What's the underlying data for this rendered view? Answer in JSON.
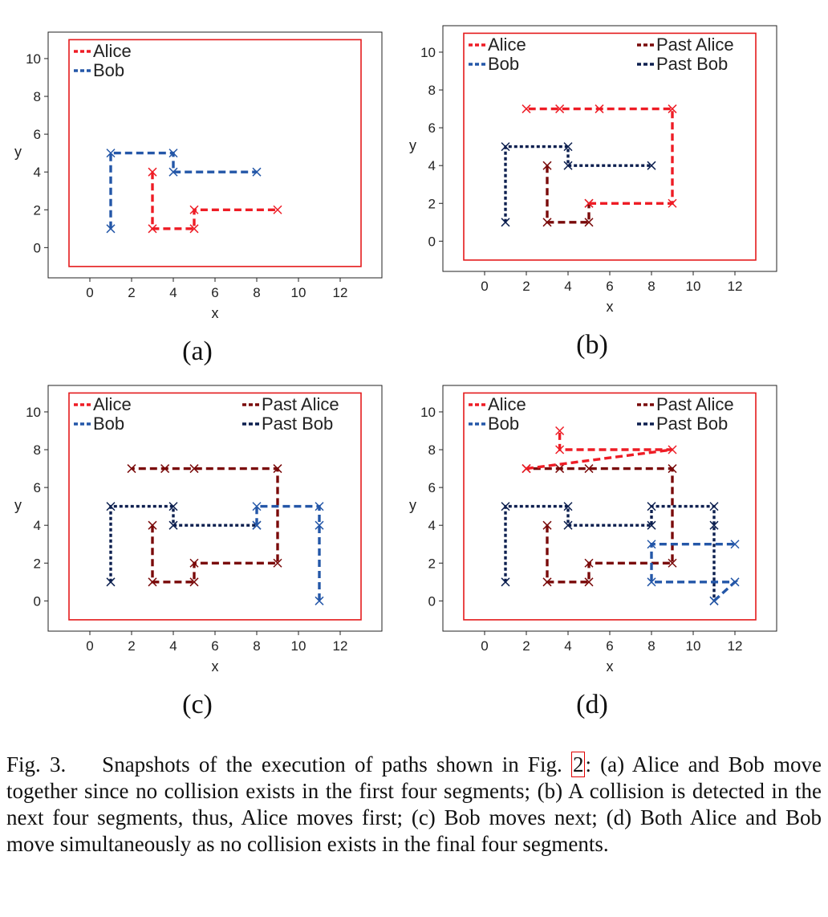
{
  "chart_data": [
    {
      "type": "line",
      "panel_label": "(a)",
      "xlabel": "x",
      "ylabel": "y",
      "xticks": [
        0,
        2,
        4,
        6,
        8,
        10,
        12
      ],
      "yticks": [
        0,
        2,
        4,
        6,
        8,
        10
      ],
      "xlim": [
        -2,
        14
      ],
      "ylim": [
        -1.6,
        11.4
      ],
      "boundary": {
        "x": [
          -1,
          13
        ],
        "y": [
          -1,
          11
        ],
        "color": "#e41a1c"
      },
      "legend": {
        "left": [
          {
            "label": "Alice",
            "color": "#ee1c25"
          },
          {
            "label": "Bob",
            "color": "#2457a8"
          }
        ],
        "right": []
      },
      "series": [
        {
          "name": "Alice",
          "color": "#ee1c25",
          "style": "dashed",
          "x": [
            3,
            3,
            5,
            5,
            9
          ],
          "y": [
            4,
            1,
            1,
            2,
            2
          ]
        },
        {
          "name": "Bob",
          "color": "#2457a8",
          "style": "dashed",
          "x": [
            1,
            1,
            4,
            4,
            8
          ],
          "y": [
            1,
            5,
            5,
            4,
            4
          ]
        }
      ]
    },
    {
      "type": "line",
      "panel_label": "(b)",
      "xlabel": "x",
      "ylabel": "y",
      "xticks": [
        0,
        2,
        4,
        6,
        8,
        10,
        12
      ],
      "yticks": [
        0,
        2,
        4,
        6,
        8,
        10
      ],
      "xlim": [
        -2,
        14
      ],
      "ylim": [
        -1.6,
        11.4
      ],
      "boundary": {
        "x": [
          -1,
          13
        ],
        "y": [
          -1,
          11
        ],
        "color": "#e41a1c"
      },
      "legend": {
        "left": [
          {
            "label": "Alice",
            "color": "#ee1c25"
          },
          {
            "label": "Bob",
            "color": "#2457a8"
          }
        ],
        "right": [
          {
            "label": "Past Alice",
            "color": "#7a0a0a"
          },
          {
            "label": "Past Bob",
            "color": "#0c1f4f"
          }
        ]
      },
      "series": [
        {
          "name": "Past Alice",
          "color": "#7a0a0a",
          "style": "dashed",
          "x": [
            3,
            3,
            5,
            5
          ],
          "y": [
            4,
            1,
            1,
            2
          ]
        },
        {
          "name": "Alice",
          "color": "#ee1c25",
          "style": "dashed",
          "x": [
            5,
            9,
            9,
            5.5,
            3.6,
            2
          ],
          "y": [
            2,
            2,
            7,
            7,
            7,
            7
          ]
        },
        {
          "name": "Past Bob",
          "color": "#0c1f4f",
          "style": "dotted",
          "x": [
            1,
            1,
            4,
            4,
            8
          ],
          "y": [
            1,
            5,
            5,
            4,
            4
          ]
        }
      ]
    },
    {
      "type": "line",
      "panel_label": "(c)",
      "xlabel": "x",
      "ylabel": "y",
      "xticks": [
        0,
        2,
        4,
        6,
        8,
        10,
        12
      ],
      "yticks": [
        0,
        2,
        4,
        6,
        8,
        10
      ],
      "xlim": [
        -2,
        14
      ],
      "ylim": [
        -1.6,
        11.4
      ],
      "boundary": {
        "x": [
          -1,
          13
        ],
        "y": [
          -1,
          11
        ],
        "color": "#e41a1c"
      },
      "legend": {
        "left": [
          {
            "label": "Alice",
            "color": "#ee1c25"
          },
          {
            "label": "Bob",
            "color": "#2457a8"
          }
        ],
        "right": [
          {
            "label": "Past Alice",
            "color": "#7a0a0a"
          },
          {
            "label": "Past Bob",
            "color": "#0c1f4f"
          }
        ]
      },
      "series": [
        {
          "name": "Past Alice",
          "color": "#7a0a0a",
          "style": "dashed",
          "x": [
            3,
            3,
            5,
            5,
            9,
            9,
            5,
            3.6,
            2
          ],
          "y": [
            4,
            1,
            1,
            2,
            2,
            7,
            7,
            7,
            7
          ]
        },
        {
          "name": "Past Bob",
          "color": "#0c1f4f",
          "style": "dotted",
          "x": [
            1,
            1,
            4,
            4,
            8
          ],
          "y": [
            1,
            5,
            5,
            4,
            4
          ]
        },
        {
          "name": "Bob",
          "color": "#2457a8",
          "style": "dashed",
          "x": [
            8,
            8,
            11,
            11,
            11
          ],
          "y": [
            4,
            5,
            5,
            4,
            0
          ]
        }
      ]
    },
    {
      "type": "line",
      "panel_label": "(d)",
      "xlabel": "x",
      "ylabel": "y",
      "xticks": [
        0,
        2,
        4,
        6,
        8,
        10,
        12
      ],
      "yticks": [
        0,
        2,
        4,
        6,
        8,
        10
      ],
      "xlim": [
        -2,
        14
      ],
      "ylim": [
        -1.6,
        11.4
      ],
      "boundary": {
        "x": [
          -1,
          13
        ],
        "y": [
          -1,
          11
        ],
        "color": "#e41a1c"
      },
      "legend": {
        "left": [
          {
            "label": "Alice",
            "color": "#ee1c25"
          },
          {
            "label": "Bob",
            "color": "#2457a8"
          }
        ],
        "right": [
          {
            "label": "Past Alice",
            "color": "#7a0a0a"
          },
          {
            "label": "Past Bob",
            "color": "#0c1f4f"
          }
        ]
      },
      "series": [
        {
          "name": "Past Alice",
          "color": "#7a0a0a",
          "style": "dashed",
          "x": [
            3,
            3,
            5,
            5,
            9,
            9,
            5,
            3.6,
            2
          ],
          "y": [
            4,
            1,
            1,
            2,
            2,
            7,
            7,
            7,
            7
          ]
        },
        {
          "name": "Past Bob",
          "color": "#0c1f4f",
          "style": "dotted",
          "x": [
            1,
            1,
            4,
            4,
            8,
            8,
            11,
            11,
            11
          ],
          "y": [
            1,
            5,
            5,
            4,
            4,
            5,
            5,
            4,
            0
          ]
        },
        {
          "name": "Alice",
          "color": "#ee1c25",
          "style": "dashed",
          "x": [
            2,
            9,
            3.6,
            3.6
          ],
          "y": [
            7,
            8,
            8,
            9
          ]
        },
        {
          "name": "Bob",
          "color": "#2457a8",
          "style": "dashed",
          "x": [
            11,
            12,
            8,
            8,
            12
          ],
          "y": [
            0,
            1,
            1,
            3,
            3
          ]
        }
      ]
    }
  ],
  "caption": {
    "fig_label": "Fig. 3.",
    "text_before_ref": "Snapshots of the execution of paths shown in Fig.",
    "ref": "2",
    "text_after_ref": ": (a) Alice and Bob move together since no collision exists in the first four segments; (b) A collision is detected in the next four segments, thus, Alice moves first; (c) Bob moves next; (d) Both Alice and Bob move simultaneously as no collision exists in the final four segments."
  }
}
